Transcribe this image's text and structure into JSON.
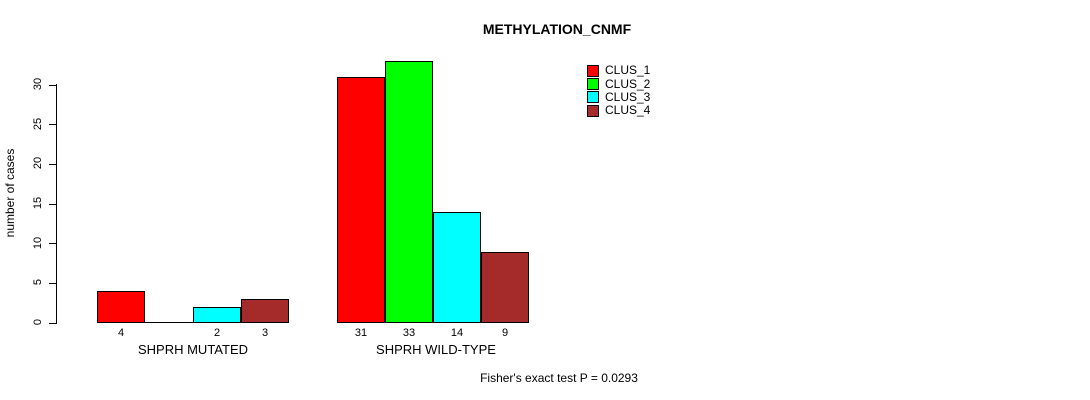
{
  "title": "METHYLATION_CNMF",
  "ylabel": "number of cases",
  "footer": "Fisher's exact test P = 0.0293",
  "legend": {
    "items": [
      {
        "label": "CLUS_1",
        "color": "#FF0000"
      },
      {
        "label": "CLUS_2",
        "color": "#00FF00"
      },
      {
        "label": "CLUS_3",
        "color": "#00FFFF"
      },
      {
        "label": "CLUS_4",
        "color": "#A52A2A"
      }
    ]
  },
  "chart_data": {
    "type": "bar",
    "title": "METHYLATION_CNMF",
    "xlabel": "",
    "ylabel": "number of cases",
    "ylim": [
      0,
      33
    ],
    "yticks": [
      0,
      5,
      10,
      15,
      20,
      25,
      30
    ],
    "grid": false,
    "legend_position": "top-right",
    "categories": [
      "SHPRH MUTATED",
      "SHPRH WILD-TYPE"
    ],
    "series": [
      {
        "name": "CLUS_1",
        "color": "#FF0000",
        "values": [
          4,
          31
        ]
      },
      {
        "name": "CLUS_2",
        "color": "#00FF00",
        "values": [
          0,
          33
        ]
      },
      {
        "name": "CLUS_3",
        "color": "#00FFFF",
        "values": [
          2,
          14
        ]
      },
      {
        "name": "CLUS_4",
        "color": "#A52A2A",
        "values": [
          3,
          9
        ]
      }
    ],
    "bar_labels": [
      [
        "4",
        "",
        "2",
        "3"
      ],
      [
        "31",
        "33",
        "14",
        "9"
      ]
    ],
    "annotation": "Fisher's exact test P = 0.0293"
  }
}
